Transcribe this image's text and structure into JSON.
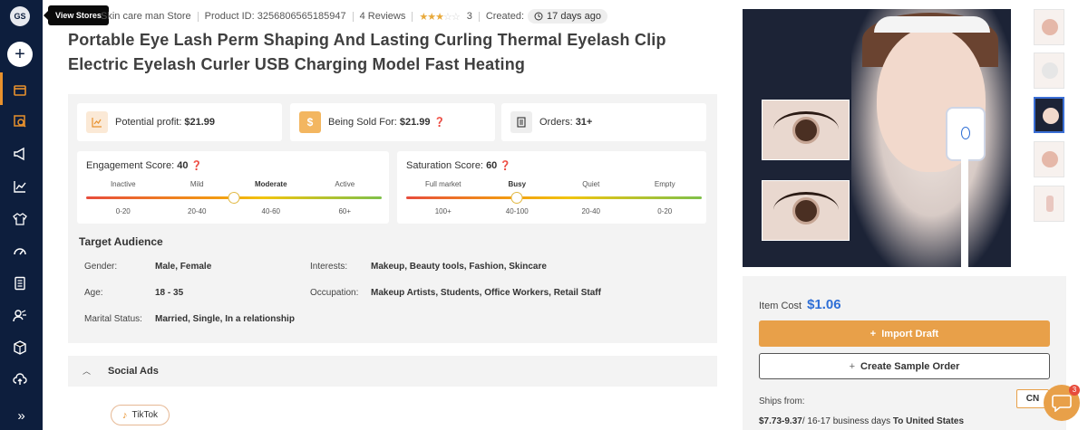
{
  "sidebar": {
    "avatar": "GS",
    "tooltip": "View Stores",
    "bottom": "»"
  },
  "meta": {
    "store": "Skin care man Store",
    "product_id": "Product ID: 3256806565185947",
    "reviews": "4 Reviews",
    "rating_count": "3",
    "created_label": "Created:",
    "created_value": "17 days ago",
    "rating_stars": 3
  },
  "product": {
    "title": "Portable Eye Lash Perm Shaping And Lasting Curling Thermal Eyelash Clip Electric Eyelash Curler USB Charging Model Fast Heating"
  },
  "stats": {
    "profit_label": "Potential profit:",
    "profit_value": "$21.99",
    "sold_label": "Being Sold For:",
    "sold_value": "$21.99",
    "orders_label": "Orders:",
    "orders_value": "31+"
  },
  "engagement": {
    "label": "Engagement Score:",
    "value": "40",
    "levels": [
      "Inactive",
      "Mild",
      "Moderate",
      "Active"
    ],
    "ranges": [
      "0-20",
      "20-40",
      "40-60",
      "60+"
    ],
    "active_index": 2,
    "knob_fraction": 0.5
  },
  "saturation": {
    "label": "Saturation Score:",
    "value": "60",
    "levels": [
      "Full market",
      "Busy",
      "Quiet",
      "Empty"
    ],
    "ranges": [
      "100+",
      "40-100",
      "20-40",
      "0-20"
    ],
    "active_index": 1,
    "knob_fraction": 0.375
  },
  "audience": {
    "title": "Target Audience",
    "gender_label": "Gender:",
    "gender_value": "Male, Female",
    "interests_label": "Interests:",
    "interests_value": "Makeup, Beauty tools, Fashion, Skincare",
    "age_label": "Age:",
    "age_value": "18 - 35",
    "occupation_label": "Occupation:",
    "occupation_value": "Makeup Artists, Students, Office Workers, Retail Staff",
    "marital_label": "Marital Status:",
    "marital_value": "Married, Single, In a relationship"
  },
  "social": {
    "label": "Social Ads",
    "tiktok": "TikTok"
  },
  "pricing": {
    "cost_label": "Item Cost",
    "cost_value": "$1.06",
    "import_label": "Import Draft",
    "sample_label": "Create Sample Order",
    "ships_from": "Ships from:",
    "cn": "CN",
    "ship_price": "$7.73-9.37",
    "ship_days": "/ 16-17 business days",
    "ship_dest": "To United States"
  },
  "chat": {
    "badge": "3"
  },
  "colors": {
    "sidebar": "#0d1e3d",
    "accent": "#e8a049",
    "link": "#2f6fd6"
  }
}
